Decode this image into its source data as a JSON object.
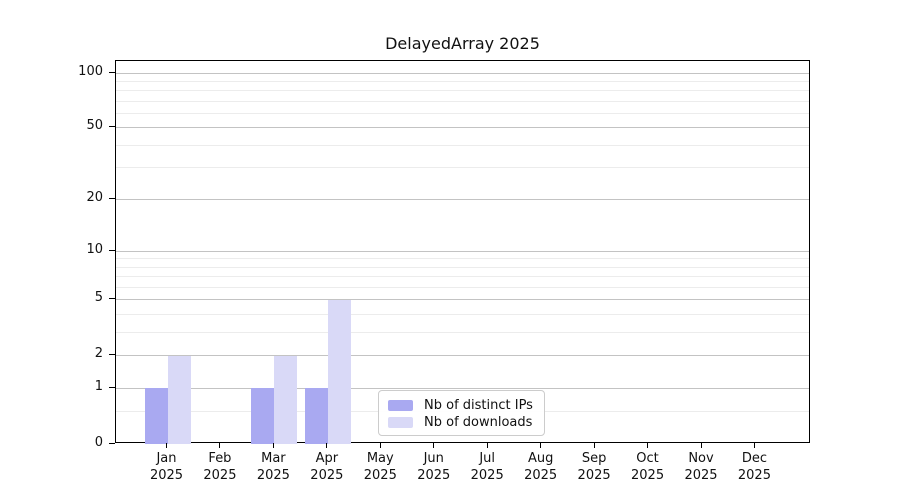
{
  "figure": {
    "background": "#ffffff",
    "text_color": "#111111"
  },
  "chart_data": {
    "type": "bar",
    "title": "DelayedArray 2025",
    "categories": [
      "Jan",
      "Feb",
      "Mar",
      "Apr",
      "May",
      "Jun",
      "Jul",
      "Aug",
      "Sep",
      "Oct",
      "Nov",
      "Dec"
    ],
    "x_sublabel": "2025",
    "series": [
      {
        "name": "Nb of distinct IPs",
        "color": "#a9a9f1",
        "values": [
          1,
          0,
          1,
          1,
          0,
          0,
          0,
          0,
          0,
          0,
          0,
          0
        ]
      },
      {
        "name": "Nb of downloads",
        "color": "#d9d9f7",
        "values": [
          2,
          0,
          2,
          5,
          0,
          0,
          0,
          0,
          0,
          0,
          0,
          0
        ]
      }
    ],
    "xlabel": "",
    "ylabel": "",
    "y_scale": "log1p",
    "ylim": [
      0,
      117
    ],
    "y_ticks": [
      0,
      1,
      2,
      5,
      10,
      20,
      50,
      100
    ],
    "y_minor_ticks": [
      0.5,
      3,
      4,
      6,
      7,
      8,
      9,
      30,
      40,
      60,
      70,
      80,
      90
    ],
    "grid": "horizontal",
    "legend_position": "lower-center-inside",
    "colors": {
      "major_grid": "#c3c3c3",
      "minor_grid": "#ececec",
      "axis": "#000000",
      "legend_border": "#cccccc"
    }
  }
}
